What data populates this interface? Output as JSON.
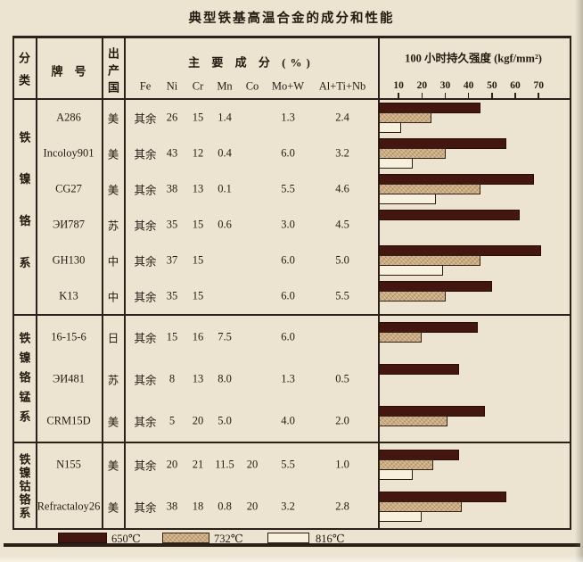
{
  "title": "典型铁基高温合金的成分和性能",
  "header": {
    "col_class": "分类",
    "col_grade": "牌　号",
    "col_country": "出产国",
    "col_composition": "主 要 成 分  (%)",
    "composition_elements": [
      "Fe",
      "Ni",
      "Cr",
      "Mn",
      "Co",
      "Mo+W",
      "Al+Ti+Nb"
    ],
    "chart_title": "100 小时持久强度 (kgf/mm²)",
    "axis_ticks": [
      10,
      20,
      30,
      40,
      50,
      60,
      70
    ]
  },
  "legend": [
    {
      "label": "650℃",
      "color": "#431610"
    },
    {
      "label": "732℃",
      "color": "#c9a87c"
    },
    {
      "label": "816℃",
      "color": "#f6f0dd"
    }
  ],
  "fe_balance_text": "其余",
  "sections": [
    {
      "category": "铁镍铬系",
      "rows": [
        {
          "grade": "A286",
          "country": "美",
          "fe": "其余",
          "ni": "26",
          "cr": "15",
          "mn": "1.4",
          "co": "",
          "mo_w": "1.3",
          "al_ti_nb": "2.4",
          "bars": [
            45,
            24,
            11
          ]
        },
        {
          "grade": "Incoloy901",
          "country": "美",
          "fe": "其余",
          "ni": "43",
          "cr": "12",
          "mn": "0.4",
          "co": "",
          "mo_w": "6.0",
          "al_ti_nb": "3.2",
          "bars": [
            56,
            30,
            16
          ]
        },
        {
          "grade": "CG27",
          "country": "美",
          "fe": "其余",
          "ni": "38",
          "cr": "13",
          "mn": "0.1",
          "co": "",
          "mo_w": "5.5",
          "al_ti_nb": "4.6",
          "bars": [
            68,
            45,
            26
          ]
        },
        {
          "grade": "ЭИ787",
          "country": "苏",
          "fe": "其余",
          "ni": "35",
          "cr": "15",
          "mn": "0.6",
          "co": "",
          "mo_w": "3.0",
          "al_ti_nb": "4.5",
          "bars": [
            62,
            null,
            null
          ]
        },
        {
          "grade": "GH130",
          "country": "中",
          "fe": "其余",
          "ni": "37",
          "cr": "15",
          "mn": "",
          "co": "",
          "mo_w": "6.0",
          "al_ti_nb": "5.0",
          "bars": [
            71,
            45,
            29
          ]
        },
        {
          "grade": "K13",
          "country": "中",
          "fe": "其余",
          "ni": "35",
          "cr": "15",
          "mn": "",
          "co": "",
          "mo_w": "6.0",
          "al_ti_nb": "5.5",
          "bars": [
            50,
            30,
            null
          ]
        }
      ]
    },
    {
      "category": "铁镍铬锰系",
      "rows": [
        {
          "grade": "16-15-6",
          "country": "日",
          "fe": "其余",
          "ni": "15",
          "cr": "16",
          "mn": "7.5",
          "co": "",
          "mo_w": "6.0",
          "al_ti_nb": "",
          "bars": [
            44,
            20,
            null
          ]
        },
        {
          "grade": "ЭИ481",
          "country": "苏",
          "fe": "其余",
          "ni": "8",
          "cr": "13",
          "mn": "8.0",
          "co": "",
          "mo_w": "1.3",
          "al_ti_nb": "0.5",
          "bars": [
            36,
            null,
            null
          ]
        },
        {
          "grade": "CRM15D",
          "country": "美",
          "fe": "其余",
          "ni": "5",
          "cr": "20",
          "mn": "5.0",
          "co": "",
          "mo_w": "4.0",
          "al_ti_nb": "2.0",
          "bars": [
            47,
            31,
            null
          ]
        }
      ]
    },
    {
      "category": "铁镍钴铬系",
      "rows": [
        {
          "grade": "N155",
          "country": "美",
          "fe": "其余",
          "ni": "20",
          "cr": "21",
          "mn": "11.5",
          "co": "20",
          "mo_w": "5.5",
          "al_ti_nb": "1.0",
          "bars": [
            36,
            25,
            16
          ]
        },
        {
          "grade": "Refractaloy26",
          "country": "美",
          "fe": "其余",
          "ni": "38",
          "cr": "18",
          "mn": "0.8",
          "co": "20",
          "mo_w": "3.2",
          "al_ti_nb": "2.8",
          "bars": [
            56,
            37,
            20
          ]
        }
      ]
    }
  ],
  "chart_data": {
    "type": "bar",
    "orientation": "horizontal",
    "title": "100 小时持久强度 (kgf/mm²)",
    "xlabel": "kgf/mm²",
    "xlim": [
      0,
      75
    ],
    "x_ticks": [
      10,
      20,
      30,
      40,
      50,
      60,
      70
    ],
    "grid": false,
    "legend_position": "bottom",
    "categories": [
      "A286",
      "Incoloy901",
      "CG27",
      "ЭИ787",
      "GH130",
      "K13",
      "16-15-6",
      "ЭИ481",
      "CRM15D",
      "N155",
      "Refractaloy26"
    ],
    "series": [
      {
        "name": "650℃",
        "values": [
          45,
          56,
          68,
          62,
          71,
          50,
          44,
          36,
          47,
          36,
          56
        ]
      },
      {
        "name": "732℃",
        "values": [
          24,
          30,
          45,
          null,
          45,
          30,
          20,
          null,
          31,
          25,
          37
        ]
      },
      {
        "name": "816℃",
        "values": [
          11,
          16,
          26,
          null,
          29,
          null,
          null,
          null,
          null,
          16,
          20
        ]
      }
    ]
  }
}
